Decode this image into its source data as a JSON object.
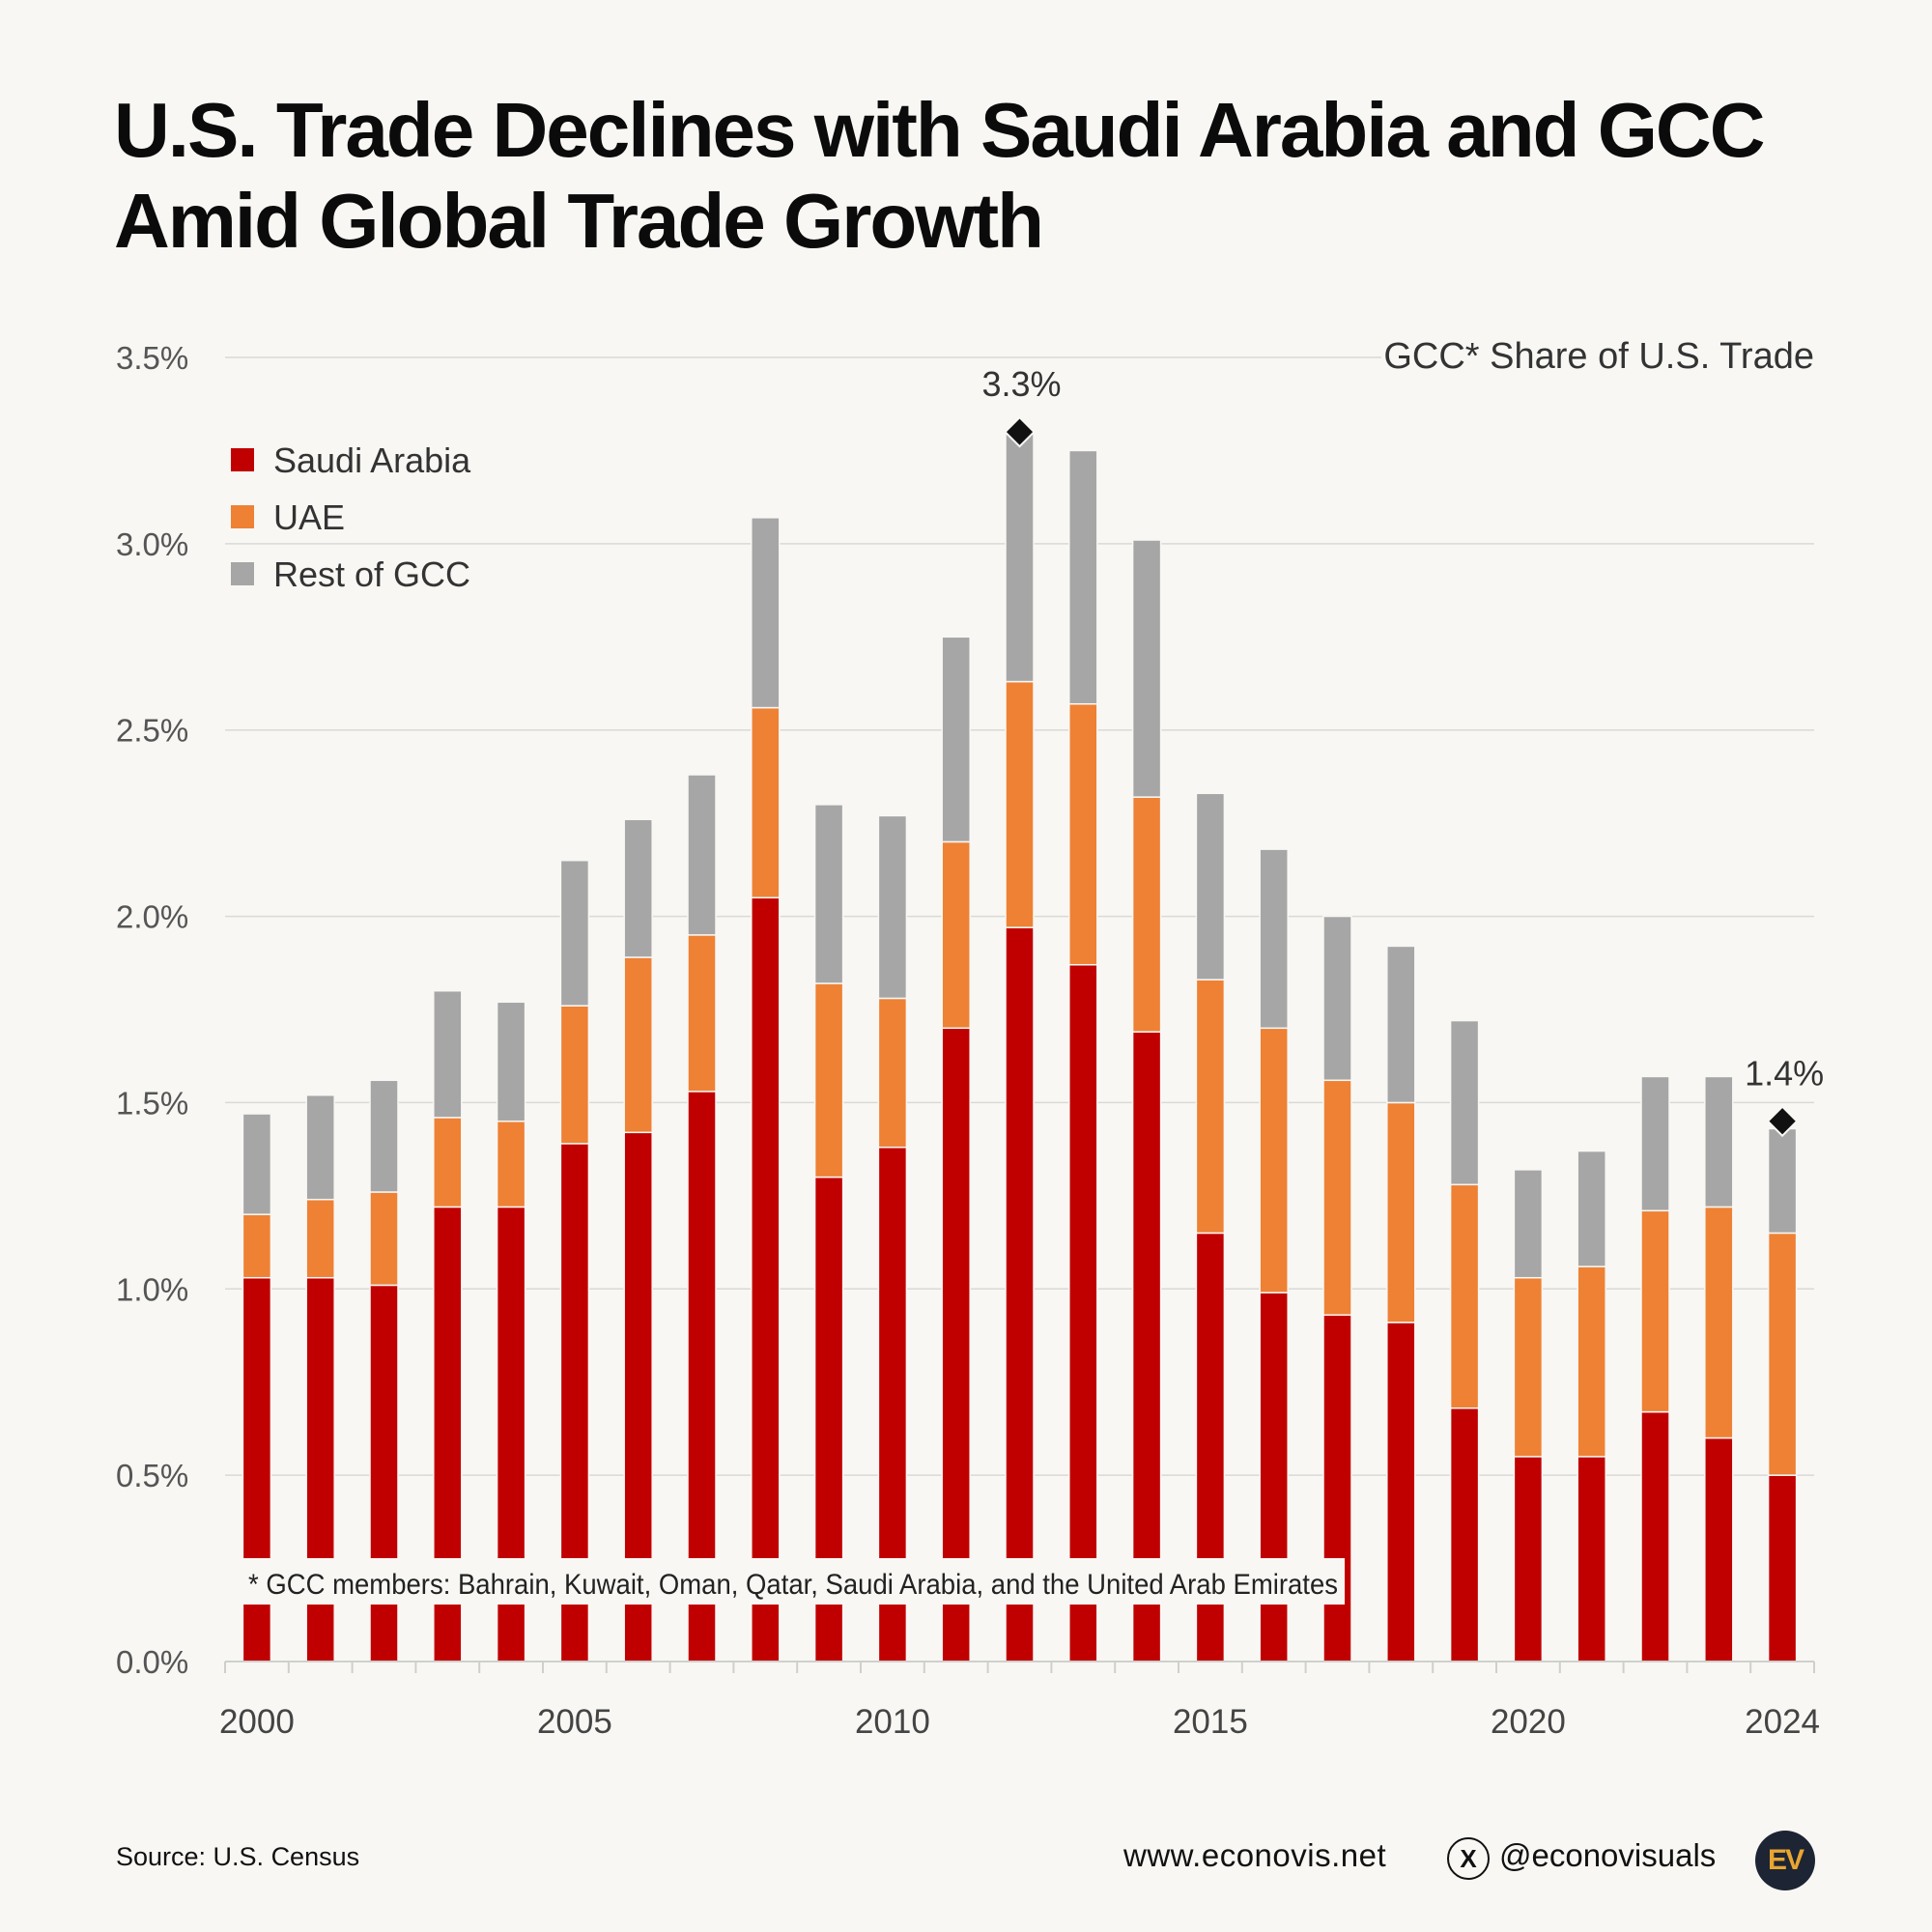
{
  "title_lines": [
    "U.S. Trade Declines with Saudi Arabia and GCC",
    "Amid Global Trade Growth"
  ],
  "footer": {
    "source": "Source: U.S. Census",
    "website": "www.econovis.net",
    "x_icon": "X",
    "handle": "@econovisuals",
    "logo_text": "EV"
  },
  "chart_data": {
    "type": "bar",
    "stacked": true,
    "subtitle": "GCC* Share of U.S. Trade",
    "note": "* GCC members: Bahrain, Kuwait, Oman, Qatar, Saudi Arabia, and the United Arab Emirates",
    "categories": [
      2000,
      2001,
      2002,
      2003,
      2004,
      2005,
      2006,
      2007,
      2008,
      2009,
      2010,
      2011,
      2012,
      2013,
      2014,
      2015,
      2016,
      2017,
      2018,
      2019,
      2020,
      2021,
      2022,
      2023,
      2024
    ],
    "x_tick_labels": [
      "2000",
      "2005",
      "2010",
      "2015",
      "2020",
      "2024"
    ],
    "y_tick_labels": [
      "0.0%",
      "0.5%",
      "1.0%",
      "1.5%",
      "2.0%",
      "2.5%",
      "3.0%",
      "3.5%"
    ],
    "ylim": [
      0,
      3.5
    ],
    "y_unit": "%",
    "legend_position": "top-left",
    "series": [
      {
        "name": "Saudi Arabia",
        "color": "#c00000",
        "values": [
          1.03,
          1.03,
          1.01,
          1.22,
          1.22,
          1.39,
          1.42,
          1.53,
          2.05,
          1.3,
          1.38,
          1.7,
          1.97,
          1.87,
          1.69,
          1.15,
          0.99,
          0.93,
          0.91,
          0.68,
          0.55,
          0.55,
          0.67,
          0.6,
          0.5
        ]
      },
      {
        "name": "UAE",
        "color": "#ee8134",
        "values": [
          0.17,
          0.21,
          0.25,
          0.24,
          0.23,
          0.37,
          0.47,
          0.42,
          0.51,
          0.52,
          0.4,
          0.5,
          0.66,
          0.7,
          0.63,
          0.68,
          0.71,
          0.63,
          0.59,
          0.6,
          0.48,
          0.51,
          0.54,
          0.62,
          0.65
        ]
      },
      {
        "name": "Rest of GCC",
        "color": "#a6a6a6",
        "values": [
          0.27,
          0.28,
          0.3,
          0.34,
          0.32,
          0.39,
          0.37,
          0.43,
          0.51,
          0.48,
          0.49,
          0.55,
          0.67,
          0.68,
          0.69,
          0.5,
          0.48,
          0.44,
          0.42,
          0.44,
          0.29,
          0.31,
          0.36,
          0.35,
          0.28
        ]
      }
    ],
    "annotations": [
      {
        "category": 2012,
        "label": "3.3%",
        "value": 3.3
      },
      {
        "category": 2024,
        "label": "1.4%",
        "value": 1.45
      }
    ]
  }
}
